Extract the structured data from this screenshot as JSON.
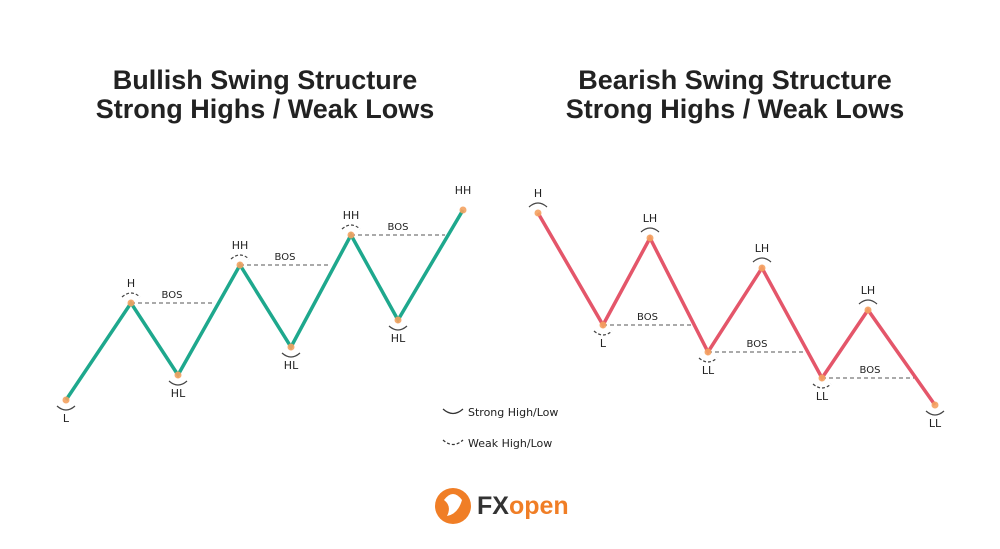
{
  "panels": [
    {
      "title": [
        "Bullish Swing Structure",
        "Strong Highs / Weak Lows"
      ],
      "points": [
        "L",
        "H",
        "HL",
        "HH",
        "HL",
        "HH",
        "HL",
        "HH"
      ],
      "bos": [
        "BOS",
        "BOS",
        "BOS"
      ]
    },
    {
      "title": [
        "Bearish Swing Structure",
        "Strong Highs / Weak Lows"
      ],
      "points": [
        "H",
        "L",
        "LH",
        "LL",
        "LH",
        "LL",
        "LH",
        "LL"
      ],
      "bos": [
        "BOS",
        "BOS",
        "BOS"
      ]
    }
  ],
  "legend": [
    "Strong High/Low",
    "Weak High/Low"
  ],
  "logo": {
    "fx": "FX",
    "open": "open"
  }
}
